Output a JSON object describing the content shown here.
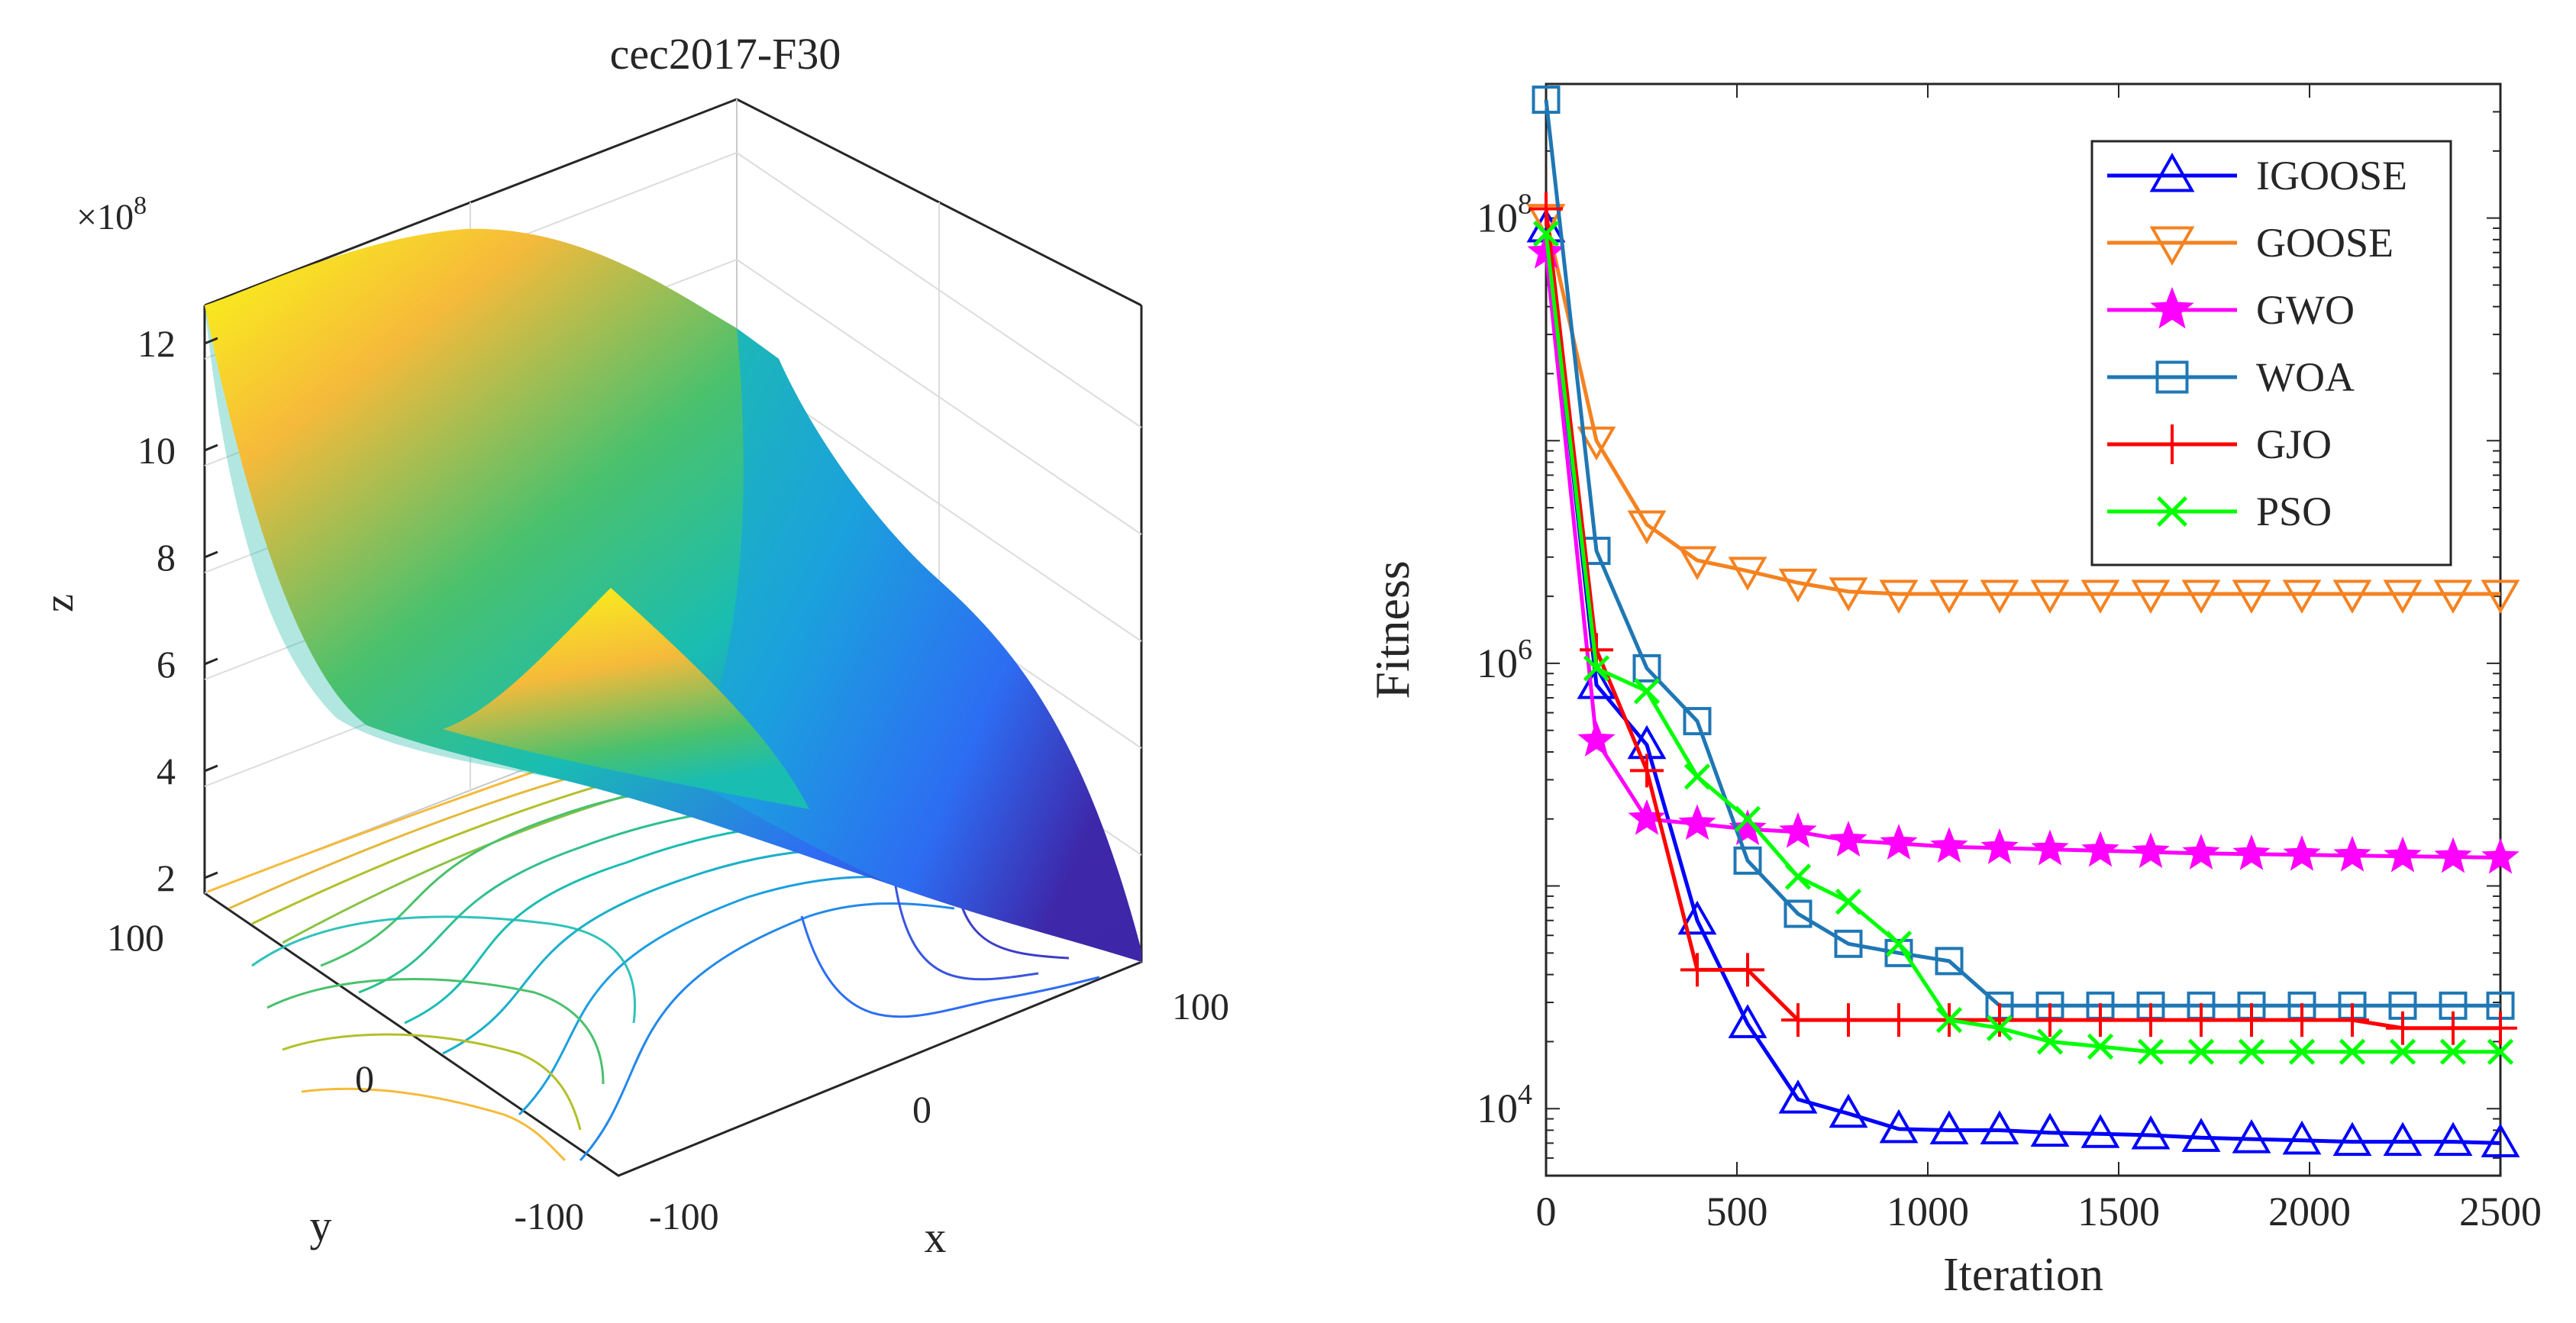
{
  "chart_data": [
    {
      "type": "surface",
      "title": "cec2017-F30",
      "xlabel": "x",
      "ylabel": "y",
      "zlabel": "z",
      "z_multiplier": "×10",
      "z_exponent": "8",
      "xlim": [
        -100,
        100
      ],
      "ylim": [
        -100,
        100
      ],
      "zlim": [
        2,
        13
      ],
      "x_ticks": [
        "-100",
        "0",
        "100"
      ],
      "y_ticks": [
        "-100",
        "0",
        "100"
      ],
      "z_ticks": [
        "2",
        "4",
        "6",
        "8",
        "10",
        "12"
      ],
      "colormap": [
        "#3e26a8",
        "#2d6df3",
        "#1b9fdf",
        "#19bdb2",
        "#4ac16d",
        "#b2c02a",
        "#f6ba3a",
        "#f9fb15"
      ]
    },
    {
      "type": "line",
      "yscale": "log",
      "xlabel": "Iteration",
      "ylabel": "Fitness",
      "xlim": [
        0,
        2500
      ],
      "ylim": [
        5000,
        400000000
      ],
      "x_ticks": [
        "0",
        "500",
        "1000",
        "1500",
        "2000",
        "2500"
      ],
      "y_ticks": [
        {
          "base": "10",
          "exp": "4",
          "value": 10000
        },
        {
          "base": "10",
          "exp": "6",
          "value": 1000000
        },
        {
          "base": "10",
          "exp": "8",
          "value": 100000000
        }
      ],
      "legend_position": "top-right",
      "series": [
        {
          "name": "IGOOSE",
          "color": "#0000ff",
          "marker": "triangle-up",
          "x": [
            0,
            132,
            264,
            396,
            528,
            660,
            792,
            924,
            1056,
            1188,
            1320,
            1452,
            1584,
            1716,
            1848,
            1980,
            2112,
            2244,
            2376,
            2500
          ],
          "y": [
            90000000,
            800000,
            430000,
            70000,
            24000,
            11000,
            9500,
            8100,
            8000,
            8000,
            7800,
            7700,
            7600,
            7400,
            7300,
            7200,
            7100,
            7100,
            7100,
            7000
          ]
        },
        {
          "name": "GOOSE",
          "color": "#f58220",
          "marker": "triangle-down",
          "x": [
            0,
            132,
            264,
            396,
            528,
            660,
            792,
            924,
            1056,
            1188,
            1320,
            1452,
            1584,
            1716,
            1848,
            1980,
            2112,
            2244,
            2376,
            2500
          ],
          "y": [
            100000000,
            10000000,
            4200000,
            2900000,
            2600000,
            2300000,
            2100000,
            2050000,
            2050000,
            2050000,
            2050000,
            2050000,
            2050000,
            2050000,
            2050000,
            2050000,
            2050000,
            2050000,
            2050000,
            2050000
          ]
        },
        {
          "name": "GWO",
          "color": "#ff00ff",
          "marker": "star",
          "x": [
            0,
            132,
            264,
            396,
            528,
            660,
            792,
            924,
            1056,
            1188,
            1320,
            1452,
            1584,
            1716,
            1848,
            1980,
            2112,
            2244,
            2376,
            2500
          ],
          "y": [
            70000000,
            450000,
            200000,
            190000,
            180000,
            175000,
            160000,
            155000,
            150000,
            148000,
            146000,
            144000,
            142000,
            140000,
            139000,
            138000,
            137000,
            136000,
            135000,
            134000
          ]
        },
        {
          "name": "WOA",
          "color": "#1f77b4",
          "marker": "square",
          "x": [
            0,
            132,
            264,
            396,
            528,
            660,
            792,
            924,
            1056,
            1188,
            1320,
            1452,
            1584,
            1716,
            1848,
            1980,
            2112,
            2244,
            2376,
            2500
          ],
          "y": [
            340000000,
            3200000,
            950000,
            550000,
            130000,
            75000,
            55000,
            50000,
            46000,
            29000,
            29000,
            29000,
            29000,
            29000,
            29000,
            29000,
            29000,
            29000,
            29000,
            29000
          ]
        },
        {
          "name": "GJO",
          "color": "#ff0000",
          "marker": "plus",
          "x": [
            0,
            132,
            264,
            396,
            528,
            660,
            792,
            924,
            1056,
            1188,
            1320,
            1452,
            1584,
            1716,
            1848,
            1980,
            2112,
            2244,
            2376,
            2500
          ],
          "y": [
            110000000,
            1150000,
            330000,
            42000,
            42000,
            25000,
            25000,
            25000,
            25000,
            25000,
            25000,
            25000,
            25000,
            25000,
            25000,
            25000,
            25000,
            23000,
            23000,
            23000
          ]
        },
        {
          "name": "PSO",
          "color": "#00ff00",
          "marker": "x",
          "x": [
            0,
            132,
            264,
            396,
            528,
            660,
            792,
            924,
            1056,
            1188,
            1320,
            1452,
            1584,
            1716,
            1848,
            1980,
            2112,
            2244,
            2376,
            2500
          ],
          "y": [
            85000000,
            950000,
            750000,
            310000,
            200000,
            110000,
            85000,
            55000,
            25000,
            23000,
            20000,
            19000,
            18000,
            18000,
            18000,
            18000,
            18000,
            18000,
            18000,
            18000
          ]
        }
      ]
    }
  ]
}
